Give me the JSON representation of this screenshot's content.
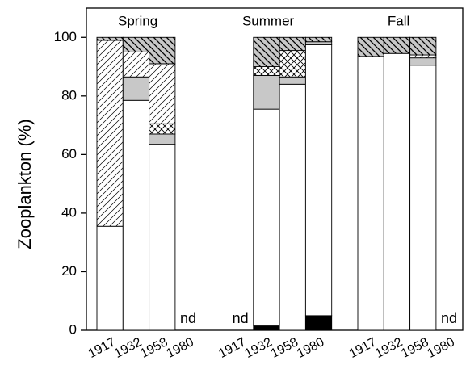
{
  "chart_data": {
    "type": "stacked-bar",
    "ylabel": "Zooplankton (%)",
    "groups": [
      "Spring",
      "Summer",
      "Fall"
    ],
    "categories": [
      "1917",
      "1932",
      "1958",
      "1980",
      "1917",
      "1932",
      "1958",
      "1980",
      "1917",
      "1932",
      "1958",
      "1980"
    ],
    "missing_label": "nd",
    "ylim": [
      0,
      110
    ],
    "yticks": [
      0,
      20,
      40,
      60,
      80,
      100
    ],
    "series": [
      {
        "color": "#000000",
        "pattern": "solid",
        "values": [
          0,
          0,
          0,
          null,
          null,
          1.5,
          0,
          5,
          0,
          0,
          0,
          null
        ]
      },
      {
        "color": "#ffffff",
        "pattern": "solid",
        "values": [
          35.5,
          78.5,
          63.5,
          null,
          null,
          74,
          84,
          92.5,
          93.5,
          94.5,
          90.5,
          null
        ]
      },
      {
        "color": "#c8c8c8",
        "pattern": "solid",
        "values": [
          0,
          8,
          3.5,
          null,
          null,
          11.5,
          2.5,
          1,
          0,
          0,
          2.5,
          null
        ]
      },
      {
        "color": "#ffffff",
        "pattern": "cross",
        "values": [
          0,
          0,
          3.5,
          null,
          null,
          3,
          9,
          0,
          0,
          0,
          0,
          null
        ]
      },
      {
        "color": "#ffffff",
        "pattern": "forward",
        "values": [
          63.5,
          8.5,
          20.5,
          null,
          null,
          0,
          0,
          0,
          0,
          0,
          1,
          null
        ]
      },
      {
        "color": "#c8c8c8",
        "pattern": "back",
        "values": [
          1,
          5,
          9,
          null,
          null,
          10,
          4.5,
          1.5,
          6.5,
          5.5,
          6,
          null
        ]
      }
    ]
  }
}
